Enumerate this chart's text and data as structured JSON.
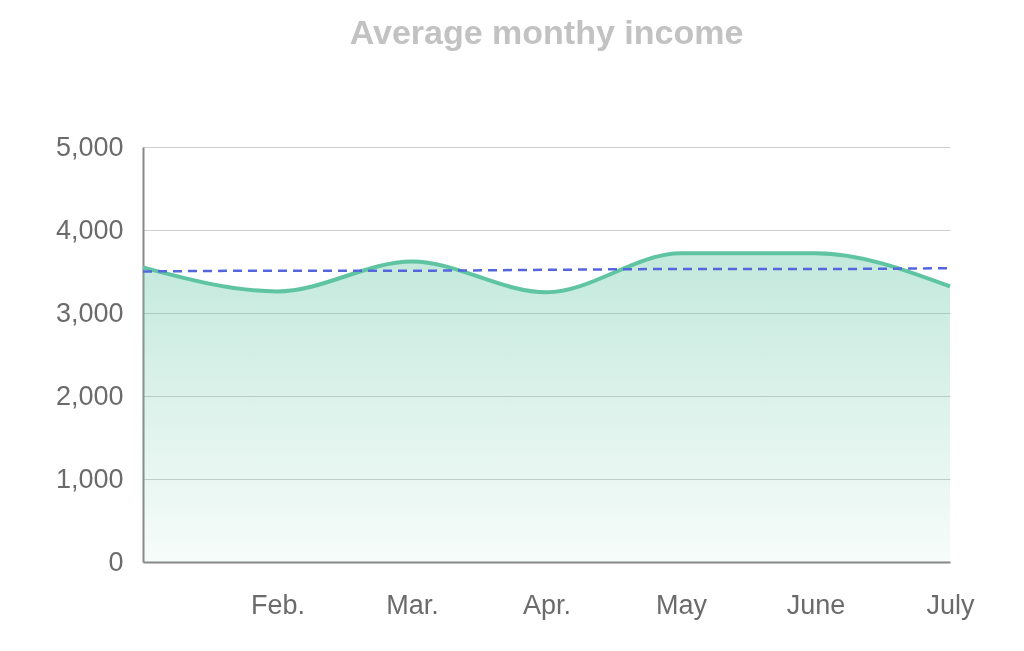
{
  "chart_data": {
    "type": "area",
    "title": "Average monthy income",
    "categories": [
      null,
      "Feb.",
      "Mar.",
      "Apr.",
      "May",
      "June",
      "July"
    ],
    "ylim": [
      0,
      5000
    ],
    "yticks": [
      0,
      {
        "value": 1000,
        "label": "1,000"
      },
      {
        "value": 2000,
        "label": "2,000"
      },
      {
        "value": 3000,
        "label": "3,000"
      },
      {
        "value": 4000,
        "label": "4,000"
      },
      {
        "value": 5000,
        "label": "5,000"
      }
    ],
    "grid": "y",
    "series": [
      {
        "color": "#5ec4a1",
        "values": [
          3550,
          3260,
          3620,
          3250,
          3720,
          3720,
          3320
        ]
      },
      {
        "type": "line",
        "values": [
          3500,
          3510,
          3510,
          3520,
          3530,
          3530,
          3540
        ],
        "color": "#5566dd",
        "line_style": "dashed"
      }
    ]
  }
}
